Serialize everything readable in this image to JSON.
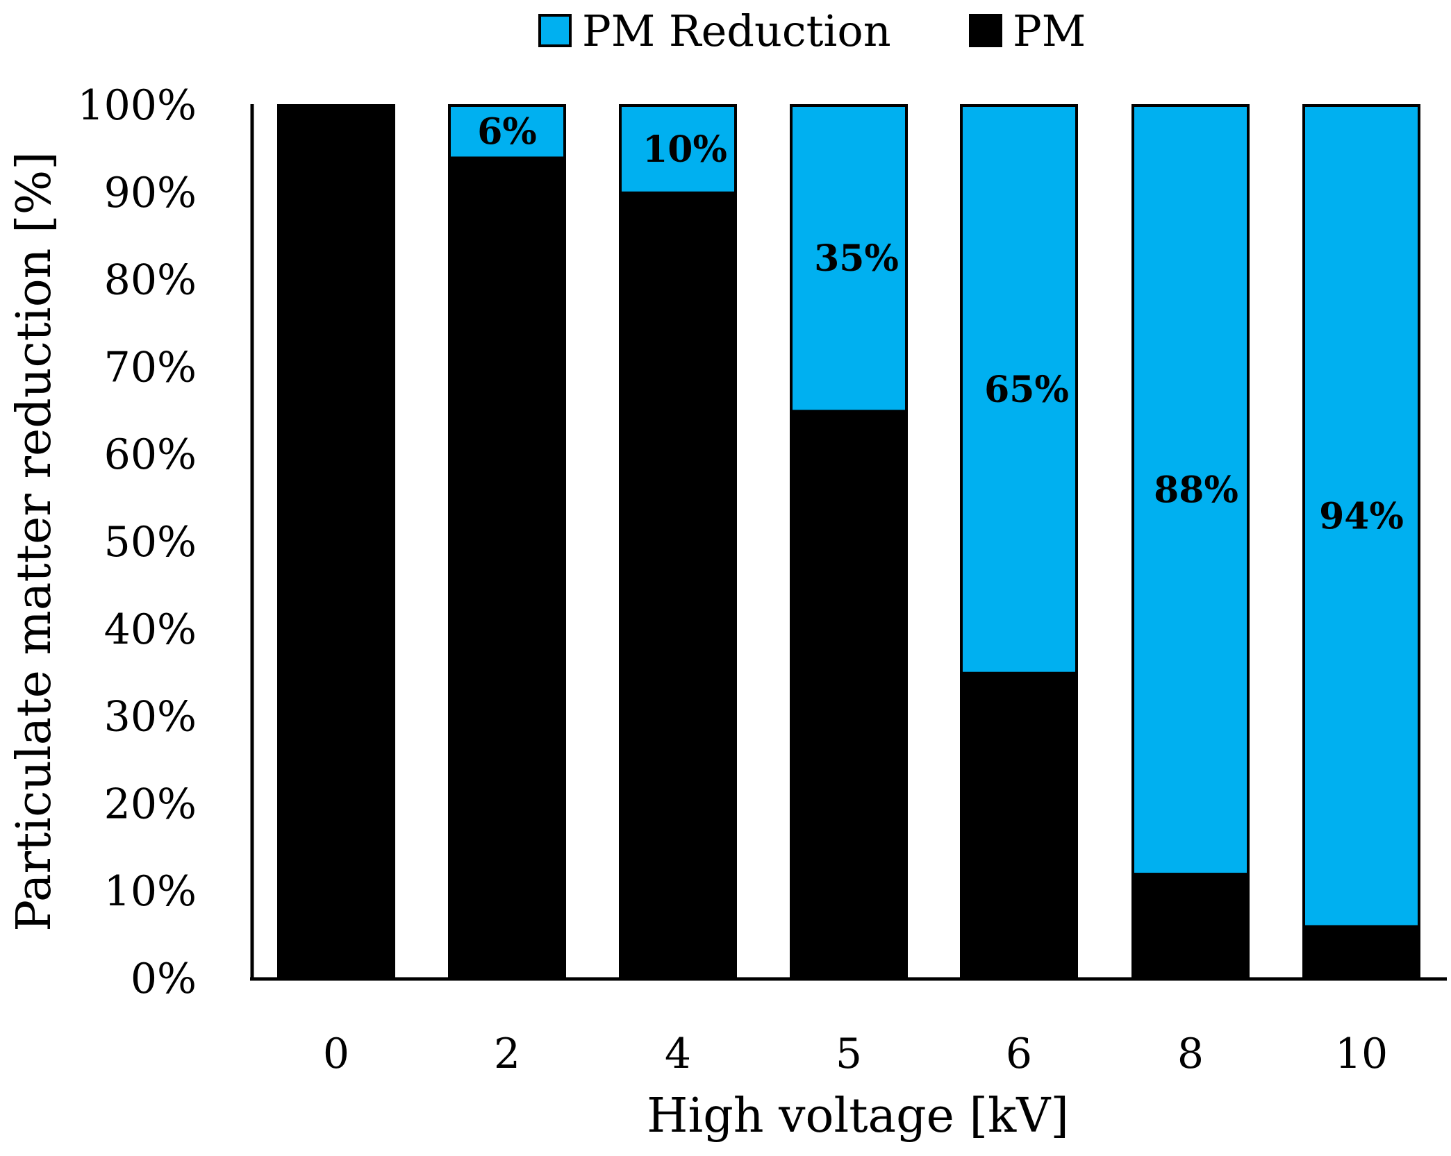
{
  "chart_data": {
    "type": "bar",
    "stacked": true,
    "title": "",
    "xlabel": "High voltage [kV]",
    "ylabel": "Particulate matter reduction [%]",
    "categories": [
      "0",
      "2",
      "4",
      "5",
      "6",
      "8",
      "10"
    ],
    "series": [
      {
        "name": "PM",
        "color": "#000000",
        "values": [
          100,
          94,
          90,
          65,
          35,
          12,
          6
        ]
      },
      {
        "name": "PM Reduction",
        "color": "#00b0f0",
        "values": [
          0,
          6,
          10,
          35,
          65,
          88,
          94
        ]
      }
    ],
    "data_labels": [
      "6%",
      "10%",
      "35%",
      "65%",
      "88%",
      "94%"
    ],
    "legend": [
      "PM Reduction",
      "PM"
    ],
    "legend_position": "top",
    "ylim": [
      0,
      100
    ],
    "yticks": [
      "0%",
      "10%",
      "20%",
      "30%",
      "40%",
      "50%",
      "60%",
      "70%",
      "80%",
      "90%",
      "100%"
    ],
    "grid": false
  }
}
